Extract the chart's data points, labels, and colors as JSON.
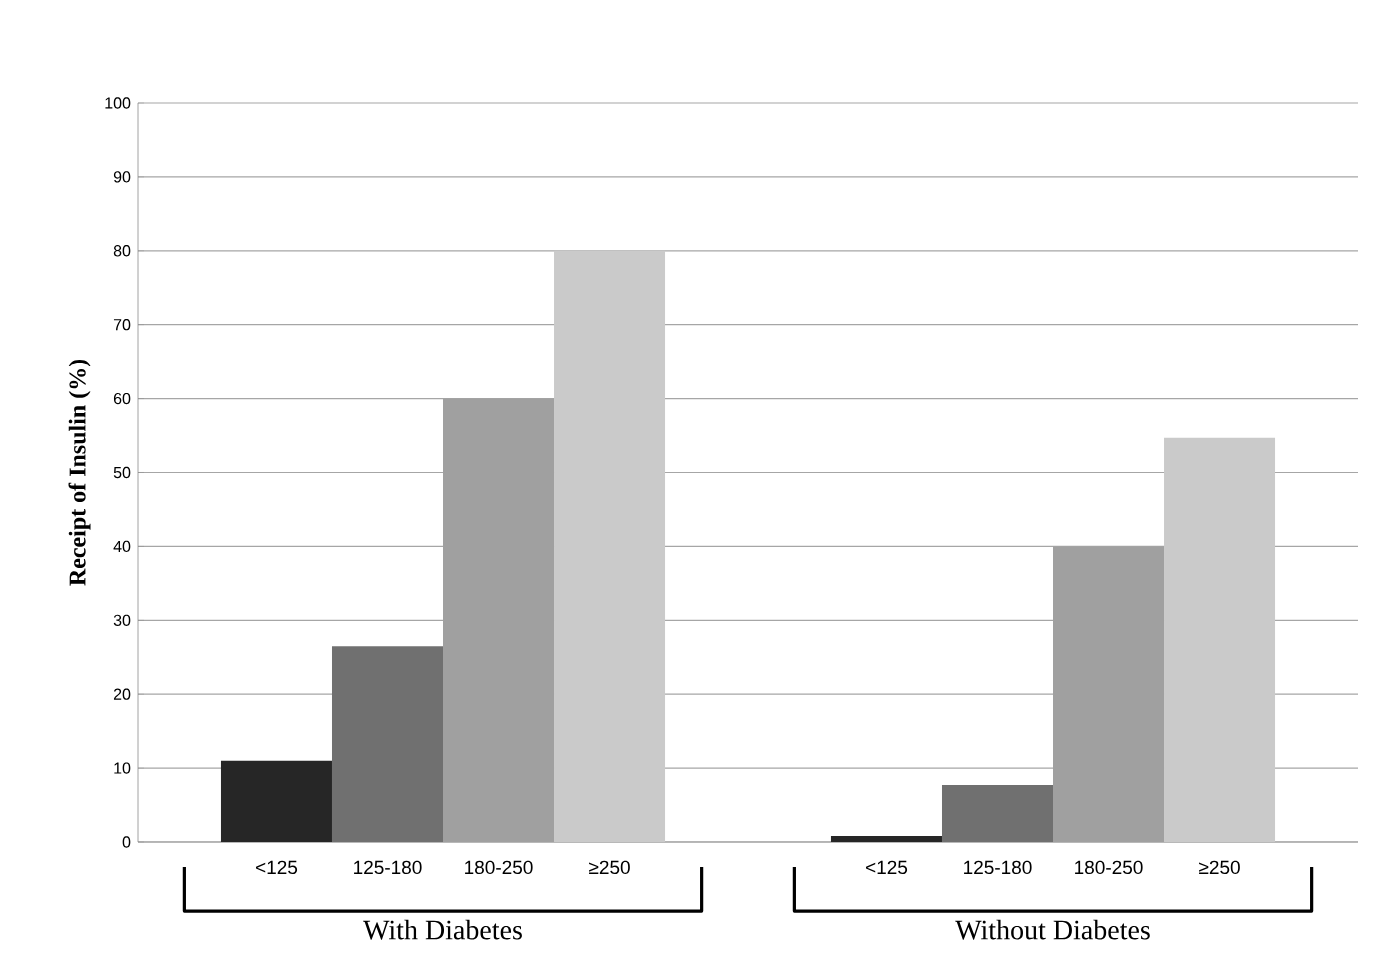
{
  "chart_data": {
    "type": "bar",
    "ylabel": "Receipt of Insulin (%)",
    "categories": [
      "With Diabetes",
      "Without Diabetes"
    ],
    "series": [
      {
        "name": "<125",
        "color": "#262626",
        "values": [
          11,
          0.8
        ]
      },
      {
        "name": "125-180",
        "color": "#707070",
        "values": [
          26.5,
          7.7
        ]
      },
      {
        "name": "180-250",
        "color": "#a0a0a0",
        "values": [
          60,
          40
        ]
      },
      {
        "name": "≥250",
        "color": "#cacaca",
        "values": [
          80,
          54.7
        ]
      }
    ],
    "ylim": [
      0,
      100
    ],
    "yticks": [
      0,
      10,
      20,
      30,
      40,
      50,
      60,
      70,
      80,
      90,
      100
    ],
    "grid": "y"
  }
}
